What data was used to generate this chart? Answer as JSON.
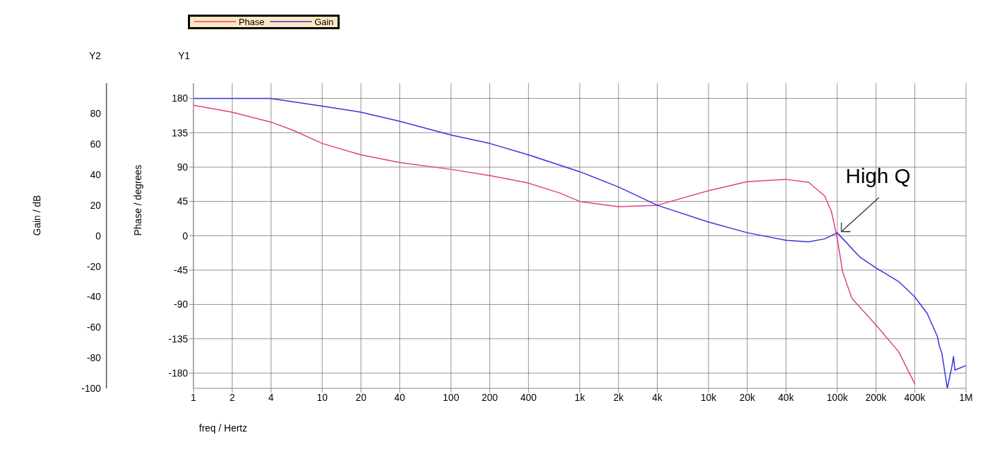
{
  "chart_data": {
    "type": "line",
    "xlabel": "freq / Hertz",
    "ylabel": "Phase / degrees",
    "y2label": "Gain / dB",
    "annotations": [
      "Y2",
      "Y1",
      {
        "text": "High Q",
        "x": 100000,
        "y": 0
      }
    ],
    "log": "x",
    "grid": true,
    "legend": "top left",
    "marker": "none",
    "line_style": "solid",
    "xlim": [
      1,
      1000000
    ],
    "xticks": [
      1,
      2,
      4,
      10,
      20,
      40,
      100,
      200,
      400,
      {
        "value": 1000,
        "label": "1k"
      },
      {
        "value": 2000,
        "label": "2k"
      },
      {
        "value": 4000,
        "label": "4k"
      },
      {
        "value": 10000,
        "label": "10k"
      },
      {
        "value": 20000,
        "label": "20k"
      },
      {
        "value": 40000,
        "label": "40k"
      },
      {
        "value": 100000,
        "label": "100k"
      },
      {
        "value": 200000,
        "label": "200k"
      },
      {
        "value": 400000,
        "label": "400k"
      },
      {
        "value": 1000000,
        "label": "1M"
      }
    ],
    "ylim": [
      -200,
      200
    ],
    "yticks": [
      -180,
      -135,
      -90,
      -45,
      0,
      45,
      90,
      135,
      180
    ],
    "y2lim": [
      -100,
      100
    ],
    "y2ticks": [
      -100,
      -80,
      -60,
      -40,
      -20,
      0,
      20,
      40,
      60,
      80
    ],
    "series": [
      {
        "name": "Phase",
        "color": "#e0407f",
        "x": [
          1,
          2,
          4,
          6,
          10,
          20,
          40,
          100,
          200,
          400,
          700,
          1000,
          2000,
          4000,
          10000,
          20000,
          40000,
          60000,
          80000,
          90000,
          100000,
          110000,
          130000,
          200000,
          300000,
          400000
        ],
        "values": [
          171,
          162,
          149,
          138,
          121,
          106,
          96,
          87,
          79,
          69,
          56,
          45,
          38,
          40,
          59,
          71,
          74,
          70,
          52,
          32,
          -3,
          -47,
          -82,
          -117,
          -152,
          -194
        ]
      },
      {
        "name": "Gain",
        "color": "#3333dd",
        "axis": "y2",
        "x": [
          1,
          4,
          10,
          20,
          40,
          100,
          200,
          400,
          1000,
          2000,
          4000,
          10000,
          20000,
          40000,
          60000,
          80000,
          100000,
          150000,
          200000,
          300000,
          400000,
          500000,
          600000,
          620000,
          650000,
          716000,
          780000,
          800000,
          820000,
          1000000
        ],
        "values": [
          90,
          90,
          85,
          81,
          75,
          66,
          60.5,
          53,
          42,
          32,
          20,
          9,
          2,
          -3,
          -4,
          -2,
          2,
          -14,
          -21,
          -30,
          -40,
          -51,
          -66,
          -72,
          -77,
          -100,
          -85,
          -79,
          -88,
          -85
        ]
      }
    ]
  }
}
